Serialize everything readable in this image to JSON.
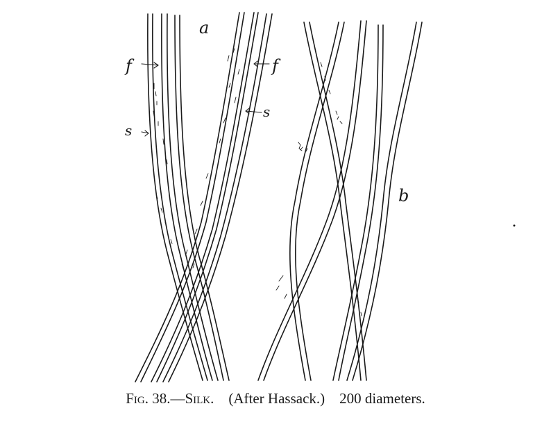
{
  "figure": {
    "labels": {
      "a": "a",
      "b": "b",
      "f_left": "f",
      "f_right": "f",
      "s_left": "s",
      "s_right": "s"
    }
  },
  "caption": {
    "fig": "Fig. 38.—",
    "title": "Silk.",
    "source": "(After Hassack.)",
    "magnification": "200 diameters."
  }
}
